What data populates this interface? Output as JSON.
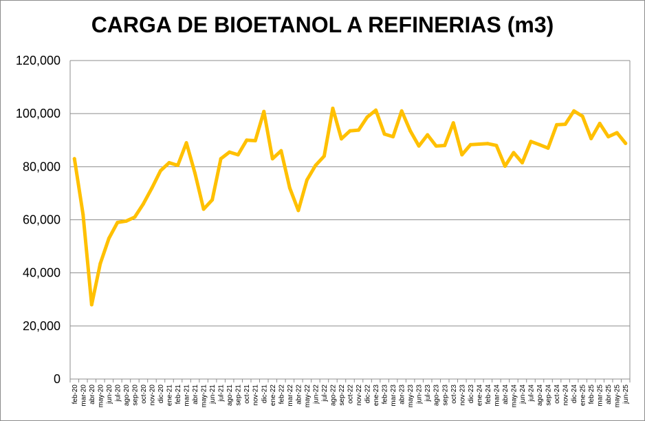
{
  "chart_data": {
    "type": "line",
    "title": "CARGA DE BIOETANOL A REFINERIAS (m3)",
    "xlabel": "",
    "ylabel": "",
    "ylim": [
      0,
      120000
    ],
    "yticks": [
      "0",
      "20,000",
      "40,000",
      "60,000",
      "80,000",
      "100,000",
      "120,000"
    ],
    "ytick_values": [
      0,
      20000,
      40000,
      60000,
      80000,
      100000,
      120000
    ],
    "grid": true,
    "legend": "none",
    "line_color": "#FFC000",
    "categories": [
      "feb-20",
      "mar-20",
      "abr-20",
      "may-20",
      "jun-20",
      "jul-20",
      "ago-20",
      "sep-20",
      "oct-20",
      "nov-20",
      "dic-20",
      "ene-21",
      "feb-21",
      "mar-21",
      "abr-21",
      "may-21",
      "jun-21",
      "jul-21",
      "ago-21",
      "sep-21",
      "oct-21",
      "nov-21",
      "dic-21",
      "ene-22",
      "feb-22",
      "mar-22",
      "abr-22",
      "may-22",
      "jun-22",
      "jul-22",
      "ago-22",
      "sep-22",
      "oct-22",
      "nov-22",
      "dic-22",
      "ene-23",
      "feb-23",
      "mar-23",
      "abr-23",
      "may-23",
      "jun-23",
      "jul-23",
      "ago-23",
      "sep-23",
      "oct-23",
      "nov-23",
      "dic-23",
      "ene-24",
      "feb-24",
      "mar-24",
      "abr-24",
      "may-24",
      "jun-24",
      "jul-24",
      "ago-24",
      "sep-24",
      "oct-24",
      "nov-24",
      "dic-24",
      "ene-25",
      "feb-25",
      "mar-25",
      "abr-25",
      "may-25",
      "jun-25"
    ],
    "series": [
      {
        "values": [
          83000,
          62000,
          28000,
          43500,
          53000,
          59000,
          59500,
          61000,
          66000,
          72000,
          78500,
          81500,
          80500,
          89000,
          77500,
          64000,
          67500,
          83000,
          85500,
          84500,
          90000,
          89800,
          100800,
          83000,
          86000,
          72000,
          63500,
          75000,
          80500,
          84000,
          102000,
          90500,
          93500,
          93800,
          98700,
          101300,
          92300,
          91300,
          101000,
          93500,
          87800,
          92000,
          87800,
          88000,
          96500,
          84500,
          88300,
          88500,
          88700,
          88000,
          80200,
          85300,
          81500,
          89500,
          88300,
          87000,
          95800,
          96000,
          101000,
          99000,
          90600,
          96300,
          91300,
          92800,
          88800
        ]
      }
    ]
  }
}
